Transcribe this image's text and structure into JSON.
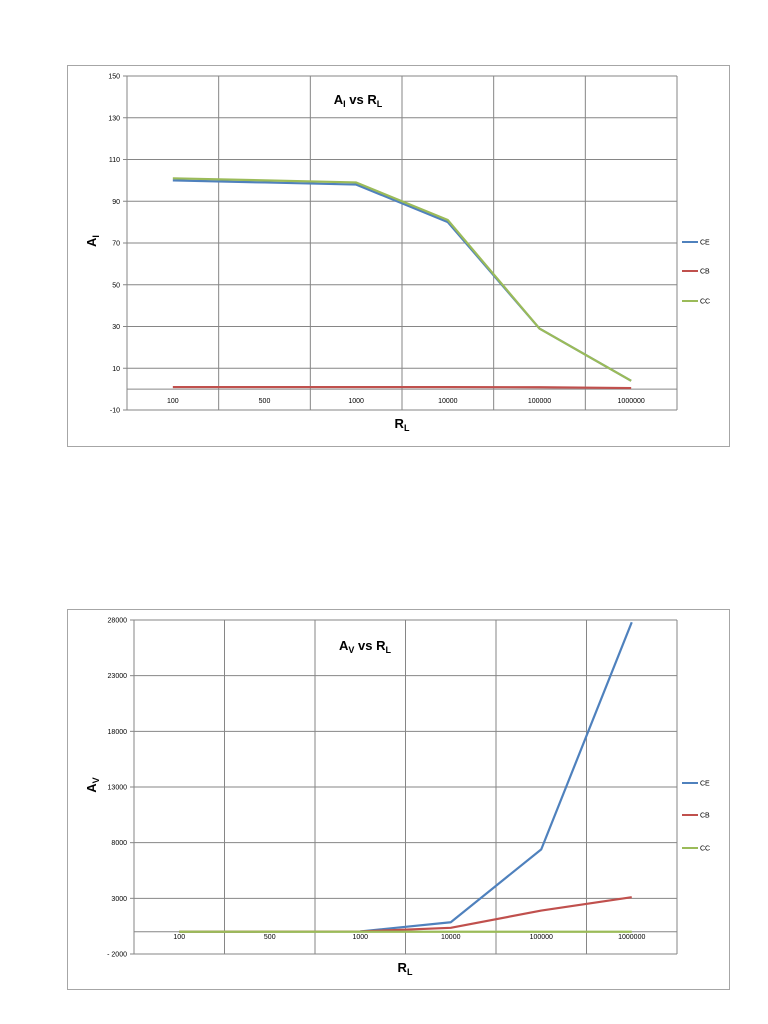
{
  "chart_data": [
    {
      "type": "line",
      "title": {
        "main": "A",
        "sub": "I",
        "mid": " vs R",
        "sub2": "L"
      },
      "xlabel": {
        "main": "R",
        "sub": "L"
      },
      "ylabel": {
        "main": "A",
        "sub": "I"
      },
      "categories": [
        "100",
        "500",
        "1000",
        "10000",
        "100000",
        "1000000"
      ],
      "yticks": [
        "150",
        "130",
        "110",
        "90",
        "70",
        "50",
        "30",
        "10",
        "-10"
      ],
      "ylim": [
        -10,
        150
      ],
      "grid": true,
      "legend_position": "right",
      "series": [
        {
          "name": "CE",
          "color": "#4f81bd",
          "values": [
            100,
            99,
            98,
            80,
            29,
            4
          ]
        },
        {
          "name": "CB",
          "color": "#c0504d",
          "values": [
            0.99,
            0.99,
            0.99,
            0.98,
            0.9,
            0.5
          ]
        },
        {
          "name": "CC",
          "color": "#9bbb59",
          "values": [
            101,
            100,
            99,
            81,
            29,
            4
          ]
        }
      ]
    },
    {
      "type": "line",
      "title": {
        "main": "A",
        "sub": "V",
        "mid": " vs R",
        "sub2": "L"
      },
      "xlabel": {
        "main": "R",
        "sub": "L"
      },
      "ylabel": {
        "main": "A",
        "sub": "V"
      },
      "categories": [
        "100",
        "500",
        "1000",
        "10000",
        "100000",
        "1000000"
      ],
      "yticks": [
        "28000",
        "23000",
        "18000",
        "13000",
        "8000",
        "3000",
        "- 2000"
      ],
      "ylim": [
        -2000,
        28000
      ],
      "grid": true,
      "legend_position": "right",
      "series": [
        {
          "name": "CE",
          "color": "#4f81bd",
          "values": [
            3,
            14,
            28,
            850,
            7400,
            27800
          ]
        },
        {
          "name": "CB",
          "color": "#c0504d",
          "values": [
            3,
            14,
            28,
            350,
            1900,
            3100
          ]
        },
        {
          "name": "CC",
          "color": "#9bbb59",
          "values": [
            0.99,
            0.99,
            0.99,
            0.99,
            0.99,
            0.99
          ]
        }
      ]
    }
  ]
}
